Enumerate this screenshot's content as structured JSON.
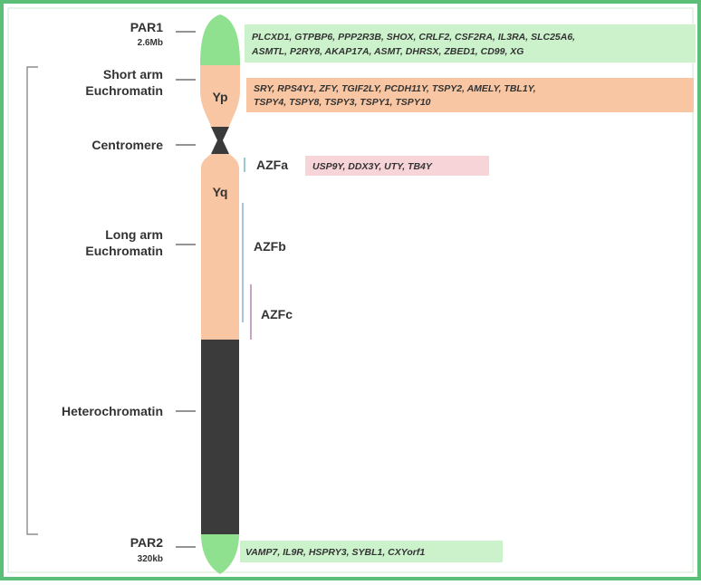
{
  "par1": {
    "name": "PAR1",
    "size": "2.6Mb",
    "genes": [
      "PLCXD1, GTPBP6, PPP2R3B, SHOX, CRLF2, CSF2RA, IL3RA, SLC25A6,",
      "ASMTL, P2RY8, AKAP17A, ASMT, DHRSX, ZBED1, CD99, XG"
    ]
  },
  "short_arm": {
    "label": [
      "Short arm",
      "Euchromatin"
    ],
    "band": "Yp",
    "genes": [
      "SRY,  RPS4Y1,  ZFY,  TGIF2LY,  PCDH11Y,  TSPY2,  AMELY,  TBL1Y,",
      "TSPY4, TSPY8, TSPY3, TSPY1, TSPY10"
    ]
  },
  "centromere": {
    "label": "Centromere"
  },
  "long_arm": {
    "label": [
      "Long arm",
      "Euchromatin"
    ],
    "band": "Yq"
  },
  "azf": [
    {
      "name": "AZFa",
      "genes": "USP9Y, DDX3Y, UTY, TB4Y"
    },
    {
      "name": "AZFb"
    },
    {
      "name": "AZFc"
    }
  ],
  "heterochromatin": {
    "label": "Heterochromatin"
  },
  "par2": {
    "name": "PAR2",
    "size": "320kb",
    "genes": "VAMP7, IL9R, HSPRY3, SYBL1, CXYorf1"
  }
}
